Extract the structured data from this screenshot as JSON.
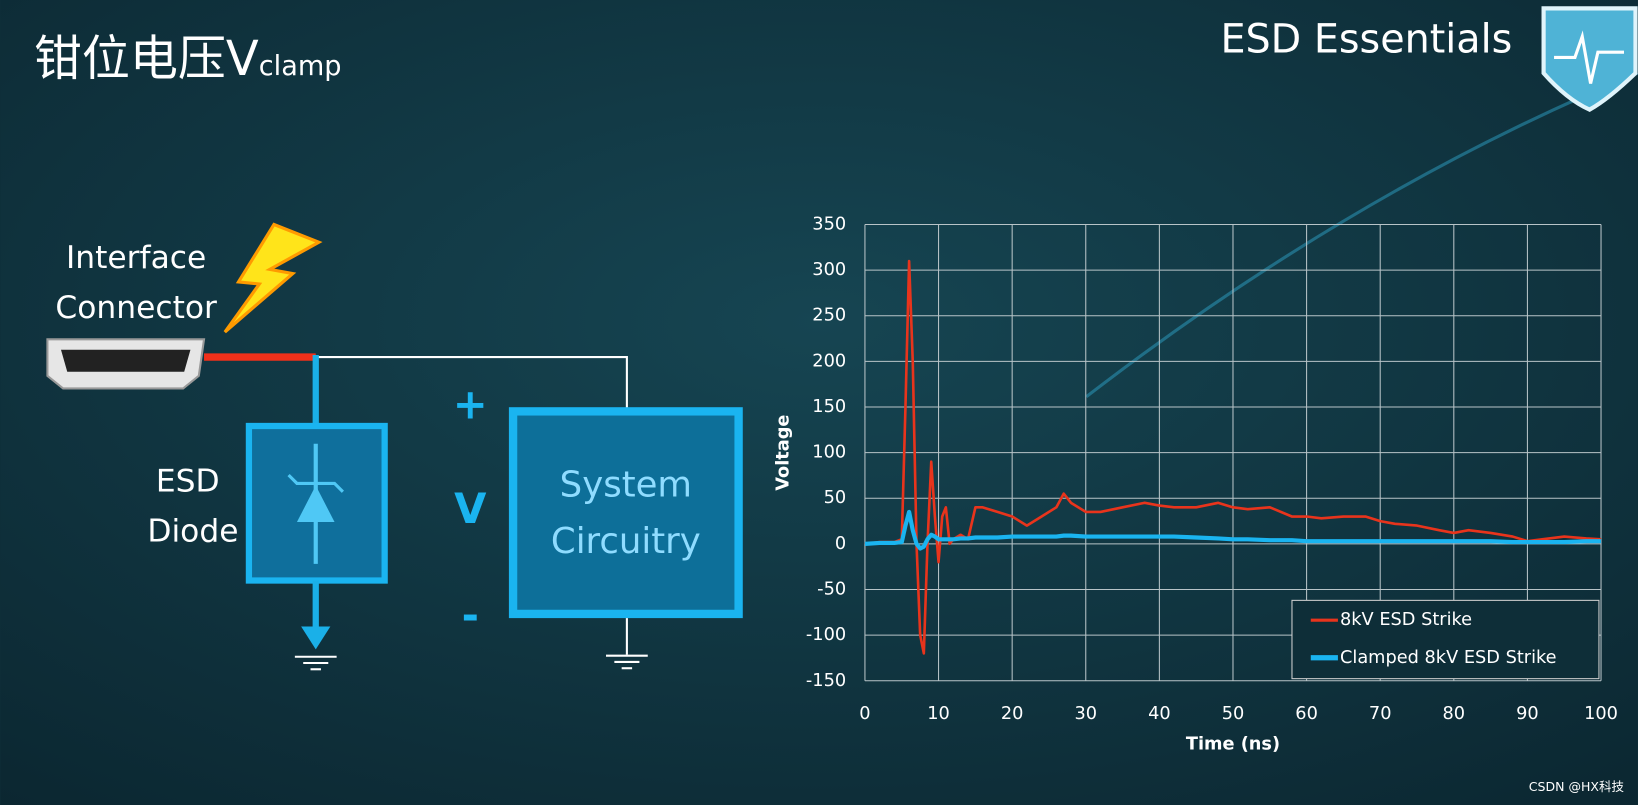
{
  "slide": {
    "title": "钳位电压V",
    "title_sub": "clamp",
    "brand": "ESD Essentials",
    "connector_label": [
      "Interface",
      "Connector"
    ],
    "diode_label": [
      "ESD",
      "Diode"
    ],
    "plus": "+",
    "voltage": "V",
    "minus": "-",
    "system_label": [
      "System",
      "Circuitry"
    ],
    "watermark": "CSDN @HX科技"
  },
  "chart_data": {
    "type": "line",
    "x_label": "Time (ns)",
    "y_label": "Voltage",
    "x": [
      0,
      2,
      4,
      5,
      5.5,
      6,
      6.5,
      7,
      7.5,
      8,
      8.5,
      9,
      9.5,
      10,
      10.5,
      11,
      11.5,
      12,
      13,
      14,
      15,
      16,
      18,
      20,
      22,
      24,
      26,
      27,
      28,
      30,
      32,
      35,
      38,
      40,
      42,
      45,
      48,
      50,
      52,
      55,
      58,
      60,
      62,
      65,
      68,
      70,
      72,
      75,
      78,
      80,
      82,
      85,
      88,
      90,
      92,
      95,
      98,
      100
    ],
    "series": [
      {
        "name": "8kV ESD Strike",
        "color": "#e8341c",
        "values": [
          0,
          2,
          2,
          5,
          150,
          310,
          200,
          0,
          -100,
          -120,
          0,
          90,
          30,
          -20,
          30,
          40,
          0,
          5,
          10,
          5,
          40,
          40,
          35,
          30,
          20,
          30,
          40,
          55,
          45,
          35,
          35,
          40,
          45,
          42,
          40,
          40,
          45,
          40,
          38,
          40,
          30,
          30,
          28,
          30,
          30,
          25,
          22,
          20,
          15,
          12,
          15,
          12,
          8,
          3,
          5,
          8,
          6,
          5
        ]
      },
      {
        "name": "Clamped 8kV ESD Strike",
        "color": "#1ab4f0",
        "values": [
          0,
          1,
          1,
          2,
          20,
          35,
          15,
          0,
          -5,
          -3,
          5,
          10,
          8,
          5,
          5,
          5,
          5,
          5,
          6,
          6,
          7,
          7,
          7,
          8,
          8,
          8,
          8,
          9,
          9,
          8,
          8,
          8,
          8,
          8,
          8,
          7,
          6,
          5,
          5,
          4,
          4,
          3,
          3,
          3,
          3,
          3,
          3,
          3,
          3,
          3,
          3,
          3,
          2,
          2,
          2,
          2,
          3,
          3
        ]
      }
    ],
    "xlim": [
      0,
      100
    ],
    "xticks": [
      0,
      10,
      20,
      30,
      40,
      50,
      60,
      70,
      80,
      90,
      100
    ],
    "ylim": [
      -150,
      350
    ],
    "yticks": [
      -150,
      -100,
      -50,
      0,
      50,
      100,
      150,
      200,
      250,
      300,
      350
    ],
    "grid": true,
    "legend": "lower right"
  }
}
